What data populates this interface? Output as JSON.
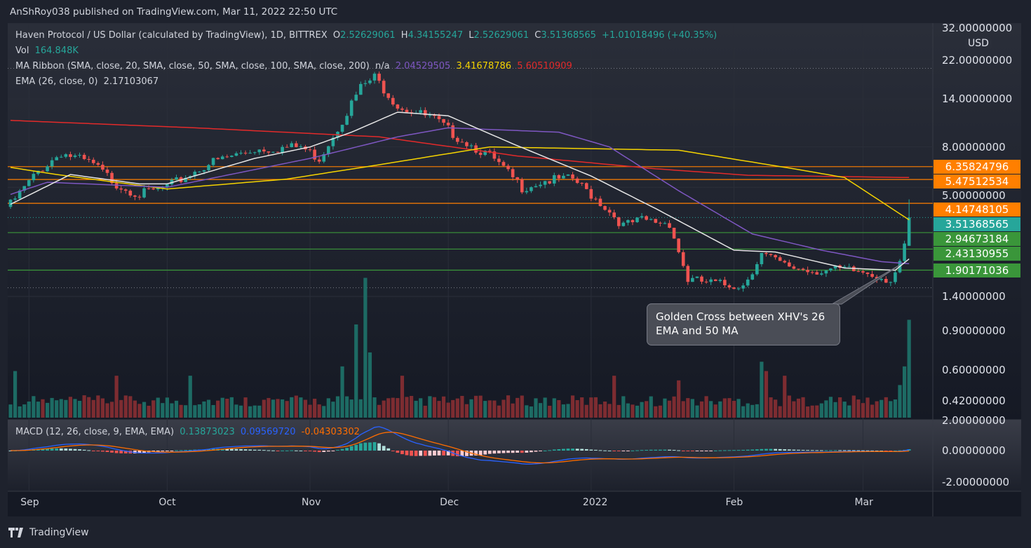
{
  "header": {
    "publisher": "AnShRoy038 published on TradingView.com, Mar 11, 2022 22:50 UTC"
  },
  "legend": {
    "symbol": "Haven Protocol / US Dollar (calculated by TradingView), 1D, BITTREX",
    "o_label": "O",
    "o": "2.52629061",
    "h_label": "H",
    "h": "4.34155247",
    "l_label": "L",
    "l": "2.52629061",
    "c_label": "C",
    "c": "3.51368565",
    "change": "+1.01018496 (+40.35%)",
    "vol_label": "Vol",
    "vol": "164.848K",
    "ma_label": "MA Ribbon (SMA, close, 20, SMA, close, 50, SMA, close, 100, SMA, close, 200)",
    "ma20": "n/a",
    "ma50": "2.04529505",
    "ma100": "3.41678786",
    "ma200": "5.60510909",
    "ema_label": "EMA (26, close, 0)",
    "ema": "2.17103067",
    "macd_label": "MACD (12, 26, close, 9, EMA, EMA)",
    "macd_hist": "0.13873023",
    "macd": "0.09569720",
    "macd_signal": "-0.04303302"
  },
  "annotation": {
    "text": "Golden Cross between XHV's 26 EMA and 50 MA"
  },
  "currency": "USD",
  "footer": {
    "logo": "TradingView"
  },
  "colors": {
    "up": "#26a69a",
    "down": "#ef5350",
    "ema": "#e6e6e6",
    "sma50": "#7e57c2",
    "sma100": "#f5d300",
    "sma200": "#e32a2a",
    "resistance": "#ff7f00",
    "support": "#3a963a",
    "vol_up": "#1d6b64",
    "vol_down": "#7d2c31",
    "macd": "#2962ff",
    "signal": "#ff6d00"
  },
  "chart_data": {
    "type": "candlestick",
    "title": "Haven Protocol / US Dollar, 1D, BITTREX",
    "start_date": "2021-08-28",
    "end_date": "2022-03-11",
    "y_scale": "log",
    "price_ticks": [
      "32.00000000",
      "22.00000000",
      "14.00000000",
      "8.00000000",
      "5.00000000",
      "1.40000000"
    ],
    "price_tick_values": [
      32,
      22,
      14,
      8,
      5,
      1.4
    ],
    "volume_ticks": [
      "0.90000000",
      "0.60000000",
      "0.42000000"
    ],
    "macd_ticks": [
      "2.00000000",
      "0.00000000",
      "-2.00000000"
    ],
    "macd_tick_values": [
      2,
      0,
      -2
    ],
    "x_labels": [
      {
        "label": "Sep",
        "day": 4
      },
      {
        "label": "Oct",
        "day": 34
      },
      {
        "label": "Nov",
        "day": 65
      },
      {
        "label": "Dec",
        "day": 95
      },
      {
        "label": "2022",
        "day": 126
      },
      {
        "label": "Feb",
        "day": 157
      },
      {
        "label": "Mar",
        "day": 185
      }
    ],
    "close_keypoints": [
      [
        0,
        4.1
      ],
      [
        6,
        6.0
      ],
      [
        11,
        7.5
      ],
      [
        18,
        6.5
      ],
      [
        23,
        5.2
      ],
      [
        28,
        4.6
      ],
      [
        34,
        5.0
      ],
      [
        43,
        6.6
      ],
      [
        53,
        7.8
      ],
      [
        63,
        8.0
      ],
      [
        67,
        7.0
      ],
      [
        72,
        11
      ],
      [
        76,
        16
      ],
      [
        79,
        18
      ],
      [
        84,
        13
      ],
      [
        92,
        11
      ],
      [
        97,
        9
      ],
      [
        104,
        7.2
      ],
      [
        111,
        5.0
      ],
      [
        116,
        5.4
      ],
      [
        122,
        5.5
      ],
      [
        128,
        4.2
      ],
      [
        133,
        3.2
      ],
      [
        137,
        3.4
      ],
      [
        143,
        3.3
      ],
      [
        147,
        1.7
      ],
      [
        155,
        1.6
      ],
      [
        159,
        1.6
      ],
      [
        163,
        2.3
      ],
      [
        168,
        2.0
      ],
      [
        174,
        1.9
      ],
      [
        181,
        1.9
      ],
      [
        186,
        1.85
      ],
      [
        191,
        1.7
      ],
      [
        193,
        2.0
      ],
      [
        194,
        2.5
      ]
    ],
    "last_candle": {
      "open": 2.52629061,
      "high": 4.34155247,
      "low": 2.52629061,
      "close": 3.51368565
    },
    "ema26": [
      [
        0,
        4.1
      ],
      [
        13,
        5.8
      ],
      [
        28,
        5.2
      ],
      [
        34,
        5.2
      ],
      [
        53,
        7
      ],
      [
        65,
        8
      ],
      [
        74,
        9.5
      ],
      [
        84,
        12
      ],
      [
        95,
        11.5
      ],
      [
        109,
        8.3
      ],
      [
        126,
        5.7
      ],
      [
        140,
        3.9
      ],
      [
        157,
        2.4
      ],
      [
        166,
        2.35
      ],
      [
        181,
        1.95
      ],
      [
        192,
        1.9
      ],
      [
        195,
        2.17
      ]
    ],
    "sma50": [
      [
        0,
        4.6
      ],
      [
        8,
        5.3
      ],
      [
        34,
        5.0
      ],
      [
        65,
        7.0
      ],
      [
        84,
        9.0
      ],
      [
        95,
        10
      ],
      [
        119,
        9.5
      ],
      [
        130,
        8
      ],
      [
        145,
        4.8
      ],
      [
        161,
        2.9
      ],
      [
        176,
        2.4
      ],
      [
        189,
        2.1
      ],
      [
        195,
        2.05
      ]
    ],
    "sma100": [
      [
        0,
        6.3
      ],
      [
        10,
        5.8
      ],
      [
        34,
        4.9
      ],
      [
        60,
        5.5
      ],
      [
        80,
        6.5
      ],
      [
        104,
        8.0
      ],
      [
        145,
        7.7
      ],
      [
        170,
        6.2
      ],
      [
        181,
        5.6
      ],
      [
        195,
        3.42
      ]
    ],
    "sma200": [
      [
        0,
        10.9
      ],
      [
        40,
        10.0
      ],
      [
        80,
        9.0
      ],
      [
        110,
        7.2
      ],
      [
        140,
        6.2
      ],
      [
        160,
        5.75
      ],
      [
        195,
        5.6
      ]
    ],
    "volume_peaks": [
      [
        1,
        0.5
      ],
      [
        23,
        0.45
      ],
      [
        39,
        0.45
      ],
      [
        72,
        0.55
      ],
      [
        75,
        1.0
      ],
      [
        77,
        1.5
      ],
      [
        78,
        0.7
      ],
      [
        85,
        0.45
      ],
      [
        131,
        0.45
      ],
      [
        145,
        0.4
      ],
      [
        163,
        0.6
      ],
      [
        164,
        0.5
      ],
      [
        168,
        0.45
      ],
      [
        193,
        0.35
      ],
      [
        194,
        0.55
      ],
      [
        195,
        1.05
      ]
    ],
    "levels": [
      {
        "value": 6.35824796,
        "label": "6.35824796",
        "kind": "resistance"
      },
      {
        "value": 5.47512534,
        "label": "5.47512534",
        "kind": "resistance"
      },
      {
        "value": 4.14748105,
        "label": "4.14748105",
        "kind": "resistance"
      },
      {
        "value": 2.94673184,
        "label": "2.94673184",
        "kind": "support"
      },
      {
        "value": 2.43130955,
        "label": "2.43130955",
        "kind": "support"
      },
      {
        "value": 1.90171036,
        "label": "1.90171036",
        "kind": "support"
      }
    ],
    "current_price": {
      "value": 3.51368565,
      "label": "3.51368565"
    }
  }
}
